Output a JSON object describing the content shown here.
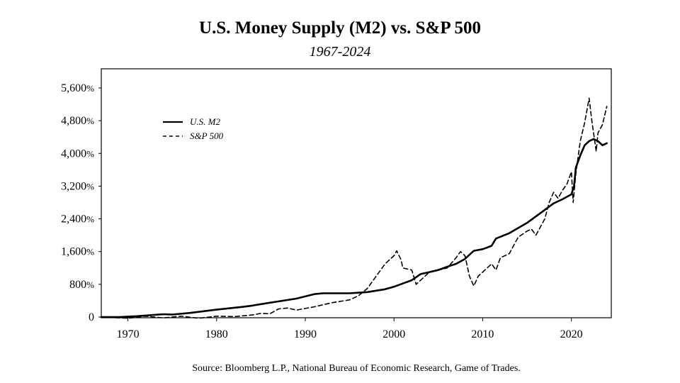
{
  "chart_data": {
    "type": "line",
    "title": "U.S. Money Supply (M2) vs. S&P 500",
    "subtitle": "1967-2024",
    "source": "Source: Bloomberg L.P., National Bureau of Economic Research, Game of Trades.",
    "xlabel": "",
    "ylabel": "",
    "xlim": [
      1967,
      2024.5
    ],
    "ylim": [
      0,
      5800
    ],
    "grid": false,
    "legend_position": "top-left",
    "x_ticks": [
      1970,
      1980,
      1990,
      2000,
      2010,
      2020
    ],
    "y_ticks": [
      {
        "value": 0,
        "num": "0",
        "unit": ""
      },
      {
        "value": 800,
        "num": "800",
        "unit": "%"
      },
      {
        "value": 1600,
        "num": "1,600",
        "unit": "%"
      },
      {
        "value": 2400,
        "num": "2,400",
        "unit": "%"
      },
      {
        "value": 3200,
        "num": "3,200",
        "unit": "%"
      },
      {
        "value": 4000,
        "num": "4,000",
        "unit": "%"
      },
      {
        "value": 4800,
        "num": "4,800",
        "unit": "%"
      },
      {
        "value": 5600,
        "num": "5,600",
        "unit": "%"
      }
    ],
    "series": [
      {
        "name": "U.S. M2",
        "style": "solid",
        "points": [
          [
            1967,
            0
          ],
          [
            1969,
            0
          ],
          [
            1971,
            20
          ],
          [
            1974,
            70
          ],
          [
            1975,
            60
          ],
          [
            1977,
            100
          ],
          [
            1980,
            180
          ],
          [
            1983,
            250
          ],
          [
            1984,
            280
          ],
          [
            1986,
            350
          ],
          [
            1989,
            450
          ],
          [
            1991,
            560
          ],
          [
            1992,
            580
          ],
          [
            1995,
            580
          ],
          [
            1997,
            610
          ],
          [
            1999,
            680
          ],
          [
            2000,
            740
          ],
          [
            2001,
            820
          ],
          [
            2002,
            900
          ],
          [
            2003,
            1050
          ],
          [
            2004,
            1100
          ],
          [
            2005,
            1150
          ],
          [
            2006,
            1230
          ],
          [
            2007,
            1300
          ],
          [
            2008,
            1420
          ],
          [
            2009,
            1620
          ],
          [
            2010,
            1660
          ],
          [
            2011,
            1740
          ],
          [
            2011.5,
            1920
          ],
          [
            2013,
            2050
          ],
          [
            2015,
            2300
          ],
          [
            2017,
            2620
          ],
          [
            2018,
            2780
          ],
          [
            2019,
            2880
          ],
          [
            2020,
            3000
          ],
          [
            2020.3,
            3200
          ],
          [
            2020.5,
            3650
          ],
          [
            2021,
            3950
          ],
          [
            2021.5,
            4200
          ],
          [
            2022,
            4300
          ],
          [
            2022.5,
            4350
          ],
          [
            2023,
            4300
          ],
          [
            2023.5,
            4200
          ],
          [
            2024,
            4250
          ]
        ]
      },
      {
        "name": "S&P 500",
        "style": "dashed",
        "points": [
          [
            1967,
            0
          ],
          [
            1970,
            -30
          ],
          [
            1972,
            20
          ],
          [
            1974,
            -20
          ],
          [
            1976,
            20
          ],
          [
            1978,
            -30
          ],
          [
            1980,
            20
          ],
          [
            1982,
            10
          ],
          [
            1984,
            50
          ],
          [
            1985,
            90
          ],
          [
            1986,
            80
          ],
          [
            1987,
            200
          ],
          [
            1988,
            220
          ],
          [
            1989,
            170
          ],
          [
            1990,
            210
          ],
          [
            1991,
            250
          ],
          [
            1993,
            350
          ],
          [
            1995,
            420
          ],
          [
            1996,
            520
          ],
          [
            1997,
            700
          ],
          [
            1998,
            1000
          ],
          [
            1999,
            1300
          ],
          [
            2000,
            1500
          ],
          [
            2000.3,
            1620
          ],
          [
            2000.8,
            1400
          ],
          [
            2001,
            1200
          ],
          [
            2002,
            1150
          ],
          [
            2002.5,
            800
          ],
          [
            2003,
            900
          ],
          [
            2004,
            1100
          ],
          [
            2005,
            1150
          ],
          [
            2006,
            1200
          ],
          [
            2007,
            1450
          ],
          [
            2007.5,
            1600
          ],
          [
            2008,
            1500
          ],
          [
            2008.5,
            1000
          ],
          [
            2009,
            760
          ],
          [
            2009.5,
            1000
          ],
          [
            2010,
            1100
          ],
          [
            2011,
            1300
          ],
          [
            2011.5,
            1150
          ],
          [
            2012,
            1450
          ],
          [
            2013,
            1550
          ],
          [
            2014,
            1950
          ],
          [
            2015,
            2100
          ],
          [
            2015.5,
            2150
          ],
          [
            2016,
            2000
          ],
          [
            2017,
            2400
          ],
          [
            2017.5,
            2800
          ],
          [
            2018,
            3050
          ],
          [
            2018.5,
            2900
          ],
          [
            2019,
            3100
          ],
          [
            2019.5,
            3250
          ],
          [
            2020,
            3550
          ],
          [
            2020.2,
            2800
          ],
          [
            2020.5,
            3500
          ],
          [
            2021,
            4300
          ],
          [
            2021.5,
            4750
          ],
          [
            2022,
            5350
          ],
          [
            2022.3,
            4800
          ],
          [
            2022.8,
            4050
          ],
          [
            2023,
            4500
          ],
          [
            2023.5,
            4700
          ],
          [
            2024,
            5150
          ]
        ]
      }
    ]
  }
}
